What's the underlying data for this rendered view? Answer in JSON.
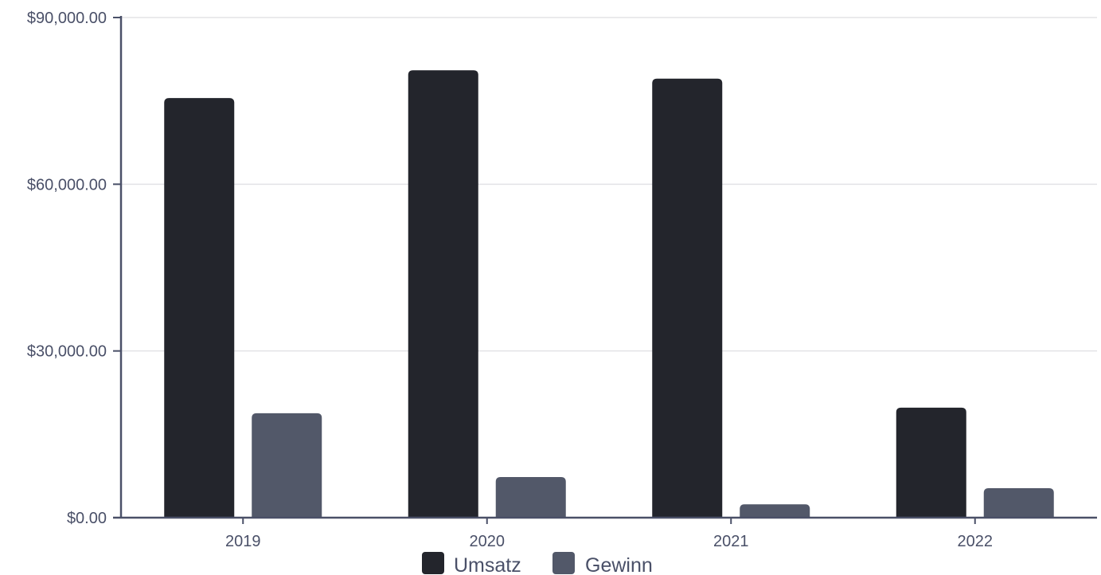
{
  "chart_data": {
    "type": "bar",
    "categories": [
      "2019",
      "2020",
      "2021",
      "2022"
    ],
    "series": [
      {
        "name": "Umsatz",
        "values": [
          75500,
          80500,
          79000,
          19800
        ],
        "color": "#23252c"
      },
      {
        "name": "Gewinn",
        "values": [
          18800,
          7300,
          2400,
          5300
        ],
        "color": "#525869"
      }
    ],
    "ylim": [
      0,
      90000
    ],
    "yticks": [
      0,
      30000,
      60000,
      90000
    ],
    "ytick_labels": [
      "$0.00",
      "$30,000.00",
      "$60,000.00",
      "$90,000.00"
    ],
    "grid": true,
    "legend": "bottom-center",
    "axis_color": "#4a5068",
    "grid_color": "#e3e3e6"
  }
}
